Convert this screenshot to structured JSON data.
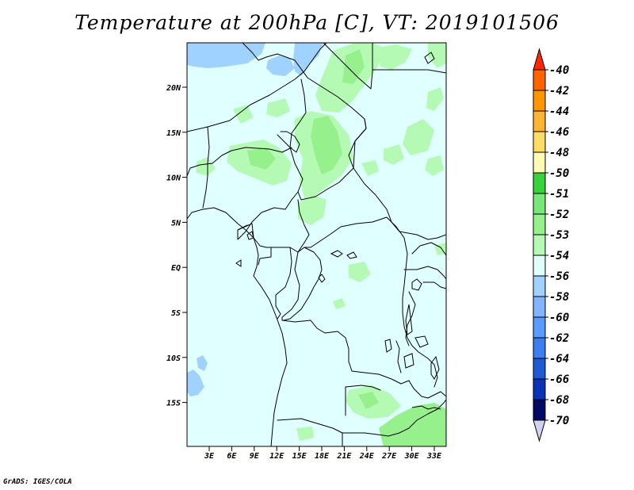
{
  "title": "Temperature at 200hPa [C], VT: 2019101506",
  "credit": "GrADS: IGES/COLA",
  "map": {
    "lat_ticks": [
      "20N",
      "15N",
      "10N",
      "5N",
      "EQ",
      "5S",
      "10S",
      "15S"
    ],
    "lon_ticks": [
      "3E",
      "6E",
      "9E",
      "12E",
      "15E",
      "18E",
      "21E",
      "24E",
      "27E",
      "30E",
      "33E"
    ],
    "background_color": "#e0ffff",
    "colors": {
      "light_blue": "#a0d2ff",
      "light_green": "#b4fab4",
      "green": "#96f08c"
    }
  },
  "colorbar": {
    "labels": [
      "-40",
      "-42",
      "-44",
      "-46",
      "-48",
      "-50",
      "-51",
      "-52",
      "-53",
      "-54",
      "-56",
      "-58",
      "-60",
      "-62",
      "-64",
      "-66",
      "-68",
      "-70"
    ],
    "colors": [
      "#ff2800",
      "#ff6400",
      "#ff9600",
      "#ffb432",
      "#ffdc64",
      "#fffab4",
      "#37d23c",
      "#78e678",
      "#96f08c",
      "#b4fab4",
      "#e0ffff",
      "#a0d2ff",
      "#82b4ff",
      "#5a9bff",
      "#3c7df0",
      "#1e5ad2",
      "#0a32b4",
      "#000a64",
      "#d2d2f0"
    ]
  }
}
